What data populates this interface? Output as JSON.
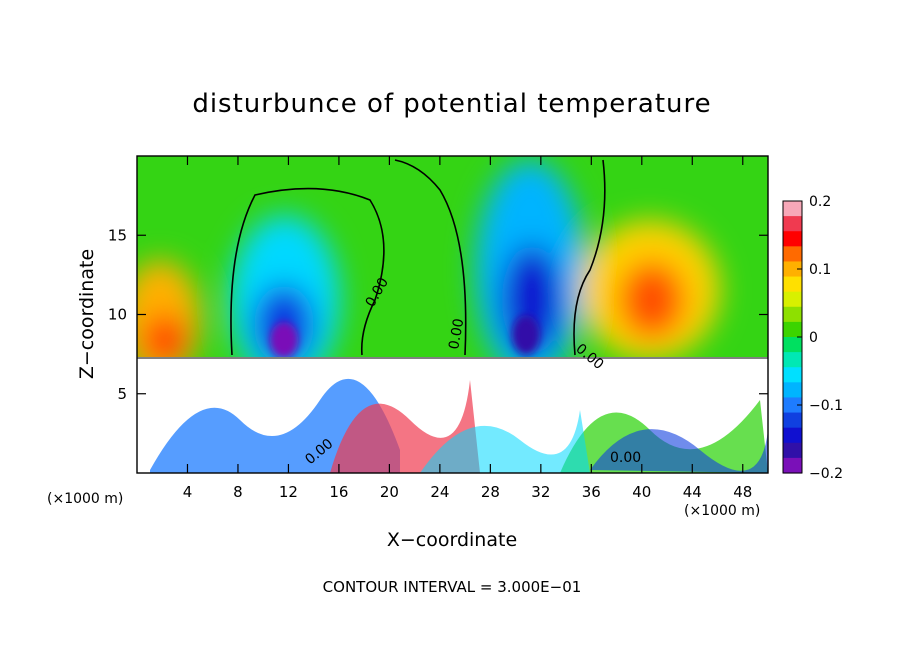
{
  "chart_data": {
    "type": "heatmap",
    "title": "disturbunce of potential temperature",
    "xlabel": "X−coordinate",
    "ylabel": "Z−coordinate",
    "x_unit_left": "(×1000 m)",
    "x_unit_right": "(×1000 m)",
    "footer": "CONTOUR INTERVAL = 3.000E−01",
    "xlim": [
      0,
      50
    ],
    "ylim": [
      0,
      20
    ],
    "x_ticks": [
      4,
      8,
      12,
      16,
      20,
      24,
      28,
      32,
      36,
      40,
      44,
      48
    ],
    "x_tick_labels": [
      "4",
      "8",
      "12",
      "16",
      "20",
      "24",
      "28",
      "32",
      "36",
      "40",
      "44",
      "48"
    ],
    "y_ticks": [
      5,
      10,
      15
    ],
    "y_tick_labels": [
      "5",
      "10",
      "15"
    ],
    "colorbar": {
      "min": -0.2,
      "max": 0.2,
      "ticks": [
        0.2,
        0.1,
        0,
        -0.1,
        -0.2
      ],
      "tick_labels": [
        "0.2",
        "0.1",
        "0",
        "−0.1",
        "−0.2"
      ],
      "colors": [
        "#f7a8b8",
        "#f03a50",
        "#ff0000",
        "#ff6a00",
        "#ffb000",
        "#ffe000",
        "#d8f000",
        "#8ee000",
        "#3cd400",
        "#00e060",
        "#00e8b4",
        "#00e0ff",
        "#00b4ff",
        "#1e7cff",
        "#1040e0",
        "#1010d0",
        "#3010a8",
        "#7a10b8"
      ]
    },
    "contour_labels": [
      "0.00",
      "0.00",
      "0.00",
      "0.00",
      "0.00"
    ],
    "features": [
      {
        "x": 2,
        "z": 10,
        "value": 0.13
      },
      {
        "x": 11.5,
        "z": 9,
        "value": -0.19
      },
      {
        "x": 12,
        "z": 14,
        "value": -0.08
      },
      {
        "x": 31,
        "z": 10,
        "value": -0.19
      },
      {
        "x": 31,
        "z": 15,
        "value": -0.12
      },
      {
        "x": 41,
        "z": 11,
        "value": 0.13
      },
      {
        "x": 41,
        "z": 14,
        "value": 0.07
      }
    ]
  }
}
